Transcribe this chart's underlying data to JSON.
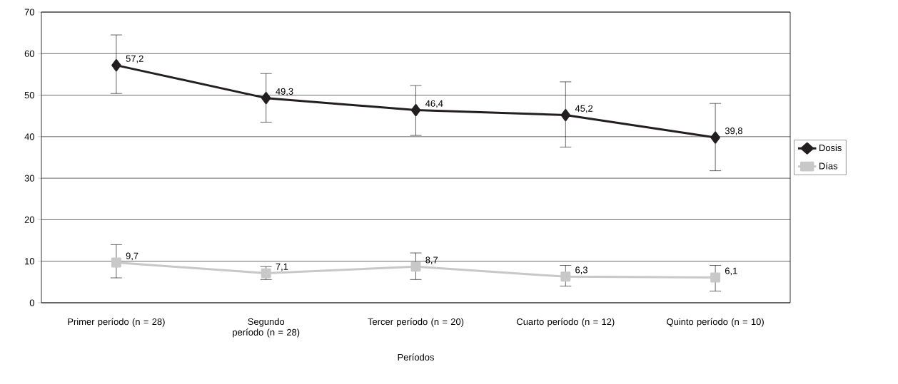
{
  "chart_data": {
    "type": "line",
    "xlabel": "Períodos",
    "categories": [
      "Primer período (n = 28)",
      "Segundo período (n = 28)",
      "Tercer período (n = 20)",
      "Cuarto período (n = 12)",
      "Quinto período (n = 10)"
    ],
    "series": [
      {
        "name": "Dosis",
        "color": "#231f20",
        "marker": "diamond",
        "values": [
          57.2,
          49.3,
          46.4,
          45.2,
          39.8
        ],
        "value_labels": [
          "57,2",
          "49,3",
          "46,4",
          "45,2",
          "39,8"
        ],
        "errors": [
          [
            50.4,
            64.5
          ],
          [
            43.5,
            55.2
          ],
          [
            40.3,
            52.3
          ],
          [
            37.5,
            53.2
          ],
          [
            31.8,
            48.0
          ]
        ]
      },
      {
        "name": "Días",
        "color": "#c8c8c8",
        "marker": "square",
        "values": [
          9.7,
          7.1,
          8.7,
          6.3,
          6.1
        ],
        "value_labels": [
          "9,7",
          "7,1",
          "8,7",
          "6,3",
          "6,1"
        ],
        "errors": [
          [
            6.0,
            14.0
          ],
          [
            5.6,
            8.7
          ],
          [
            5.6,
            12.0
          ],
          [
            4.0,
            9.0
          ],
          [
            2.8,
            9.0
          ]
        ]
      }
    ],
    "ylim": [
      0,
      70
    ],
    "yticks": [
      0,
      10,
      20,
      30,
      40,
      50,
      60,
      70
    ],
    "grid": "y",
    "legend": "right",
    "line_style": "solid"
  }
}
